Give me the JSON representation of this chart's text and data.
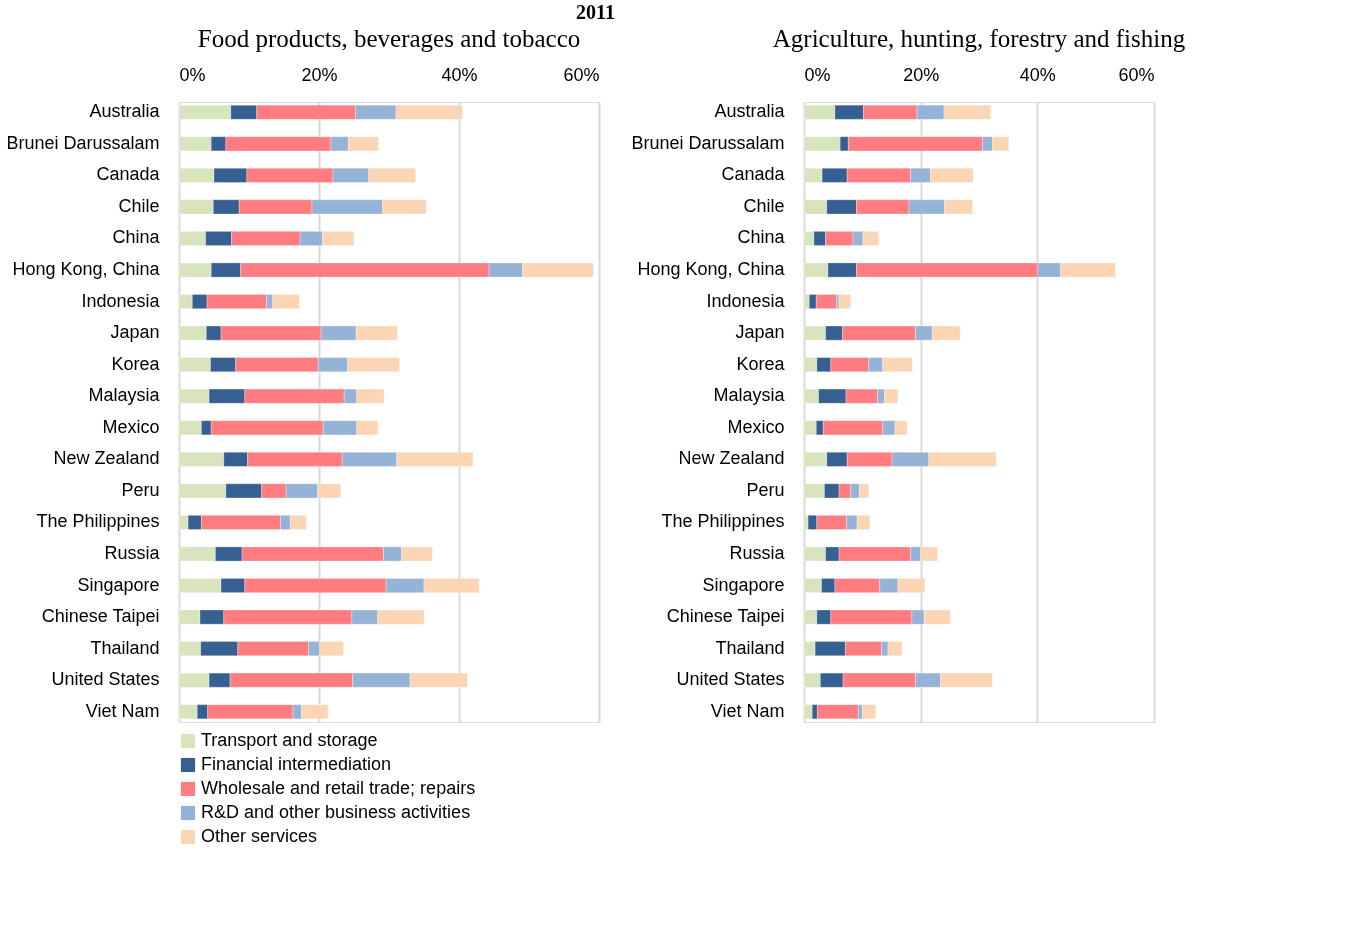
{
  "chart_data": [
    {
      "type": "bar",
      "orientation": "horizontal",
      "stacked": true,
      "title": "Food products, beverages and tobacco",
      "annotations": [
        "2011"
      ],
      "categories": [
        "Australia",
        "Brunei Darussalam",
        "Canada",
        "Chile",
        "China",
        "Hong Kong, China",
        "Indonesia",
        "Japan",
        "Korea",
        "Malaysia",
        "Mexico",
        "New Zealand",
        "Peru",
        "The Philippines",
        "Russia",
        "Singapore",
        "Chinese Taipei",
        "Thailand",
        "United States",
        "Viet Nam"
      ],
      "series": [
        {
          "name": "Transport and storage",
          "color": "#d7e4bd",
          "values": [
            7.4,
            4.6,
            5.0,
            4.9,
            3.8,
            4.6,
            1.9,
            3.9,
            4.5,
            4.3,
            3.2,
            6.4,
            6.7,
            1.3,
            5.2,
            6.0,
            3.0,
            3.1,
            4.3,
            2.6
          ]
        },
        {
          "name": "Financial intermediation",
          "color": "#376092",
          "values": [
            3.7,
            2.1,
            4.7,
            3.7,
            3.7,
            4.2,
            2.1,
            2.1,
            3.6,
            5.1,
            1.4,
            3.4,
            5.1,
            1.9,
            3.8,
            3.4,
            3.4,
            5.3,
            3.0,
            1.5
          ]
        },
        {
          "name": "Wholesale and retail trade; repairs",
          "color": "#ff7c80",
          "values": [
            14.1,
            15.0,
            12.3,
            10.4,
            9.8,
            35.5,
            8.5,
            14.3,
            11.8,
            14.2,
            16.0,
            13.5,
            3.5,
            11.3,
            20.2,
            20.2,
            18.3,
            10.1,
            17.5,
            12.2
          ]
        },
        {
          "name": "R&D and other business activities",
          "color": "#95b3d7",
          "values": [
            5.8,
            2.5,
            5.1,
            10.1,
            3.2,
            4.8,
            0.9,
            5.0,
            4.2,
            1.8,
            4.8,
            7.8,
            4.5,
            1.4,
            2.6,
            5.4,
            3.7,
            1.6,
            8.2,
            1.2
          ]
        },
        {
          "name": "Other services",
          "color": "#fcd5b5",
          "values": [
            9.5,
            4.3,
            6.7,
            6.2,
            4.5,
            10.1,
            3.8,
            5.9,
            7.4,
            3.9,
            3.0,
            10.9,
            3.3,
            2.3,
            4.4,
            7.9,
            6.6,
            3.4,
            8.2,
            3.8
          ]
        }
      ],
      "xlim": [
        0,
        60
      ],
      "xticks": [
        {
          "value": 0,
          "label": "0%"
        },
        {
          "value": 20,
          "label": "20%"
        },
        {
          "value": 40,
          "label": "40%"
        },
        {
          "value": 60,
          "label": "60%"
        }
      ],
      "grid": "x",
      "legend": "bottom"
    },
    {
      "type": "bar",
      "orientation": "horizontal",
      "stacked": true,
      "title": "Agriculture, hunting, forestry and fishing",
      "categories": [
        "Australia",
        "Brunei Darussalam",
        "Canada",
        "Chile",
        "China",
        "Hong Kong, China",
        "Indonesia",
        "Japan",
        "Korea",
        "Malaysia",
        "Mexico",
        "New Zealand",
        "Peru",
        "The Philippines",
        "Russia",
        "Singapore",
        "Chinese Taipei",
        "Thailand",
        "United States",
        "Viet Nam"
      ],
      "series": [
        {
          "color": "#d7e4bd",
          "values": [
            5.3,
            6.2,
            3.1,
            3.9,
            1.7,
            4.1,
            0.9,
            3.7,
            2.2,
            2.5,
            2.1,
            3.9,
            3.5,
            0.7,
            3.7,
            3.0,
            2.2,
            1.9,
            2.8,
            1.4
          ]
        },
        {
          "color": "#376092",
          "values": [
            4.9,
            1.4,
            4.3,
            5.1,
            2.0,
            4.9,
            1.2,
            2.9,
            2.4,
            4.7,
            1.2,
            3.5,
            2.5,
            1.5,
            2.3,
            2.3,
            2.4,
            5.2,
            3.9,
            0.9
          ]
        },
        {
          "color": "#ff7c80",
          "values": [
            9.2,
            23.0,
            10.9,
            9.0,
            4.7,
            31.1,
            3.5,
            12.5,
            6.5,
            5.4,
            10.2,
            7.7,
            2.0,
            5.1,
            12.3,
            7.7,
            13.9,
            6.2,
            12.4,
            7.0
          ]
        },
        {
          "color": "#95b3d7",
          "values": [
            4.6,
            1.7,
            3.4,
            6.1,
            1.7,
            3.9,
            0.4,
            2.9,
            2.4,
            1.2,
            2.1,
            6.3,
            1.5,
            1.8,
            1.7,
            3.1,
            2.1,
            1.1,
            4.3,
            0.7
          ]
        },
        {
          "color": "#fcd5b5",
          "values": [
            8.0,
            2.8,
            7.3,
            4.8,
            2.7,
            9.4,
            2.0,
            4.8,
            5.1,
            2.3,
            2.1,
            11.5,
            1.6,
            2.2,
            2.9,
            4.6,
            4.5,
            2.4,
            8.9,
            2.3
          ]
        }
      ],
      "xlim": [
        0,
        60
      ],
      "xticks": [
        {
          "value": 0,
          "label": "0%"
        },
        {
          "value": 20,
          "label": "20%"
        },
        {
          "value": 40,
          "label": "40%"
        },
        {
          "value": 60,
          "label": "60%"
        }
      ],
      "grid": "x",
      "legend": false
    }
  ]
}
